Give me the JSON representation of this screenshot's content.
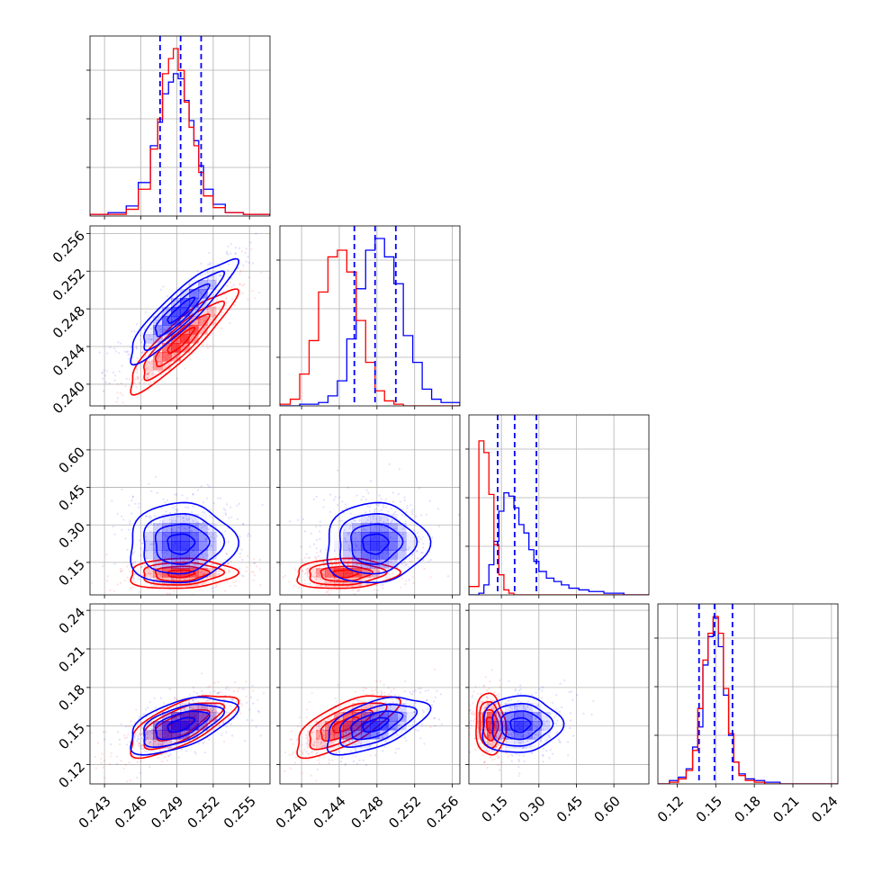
{
  "chart_data": {
    "type": "corner",
    "parameters": [
      {
        "ticks": [
          "0.243",
          "0.246",
          "0.249",
          "0.252",
          "0.255"
        ],
        "tick_values": [
          0.243,
          0.246,
          0.249,
          0.252,
          0.255
        ],
        "range": [
          0.2418,
          0.2567
        ]
      },
      {
        "ticks": [
          "0.240",
          "0.244",
          "0.248",
          "0.252",
          "0.256"
        ],
        "tick_values": [
          0.24,
          0.244,
          0.248,
          0.252,
          0.256
        ],
        "range": [
          0.2377,
          0.2568
        ]
      },
      {
        "ticks": [
          "0.15",
          "0.30",
          "0.45",
          "0.60"
        ],
        "tick_values": [
          0.15,
          0.3,
          0.45,
          0.6
        ],
        "range": [
          0.02,
          0.74
        ]
      },
      {
        "ticks": [
          "0.12",
          "0.15",
          "0.18",
          "0.21",
          "0.24"
        ],
        "tick_values": [
          0.12,
          0.15,
          0.18,
          0.21,
          0.24
        ],
        "range": [
          0.105,
          0.245
        ]
      }
    ],
    "series": [
      {
        "name": "",
        "color": "#0000ff"
      },
      {
        "name": "",
        "color": "#ff0000"
      }
    ],
    "diagonal": [
      {
        "quantiles": [
          0.2476,
          0.2493,
          0.251
        ],
        "bin_edges": [
          0.2418,
          0.2433,
          0.2448,
          0.2458,
          0.2468,
          0.2474,
          0.2478,
          0.2483,
          0.2487,
          0.2491,
          0.2496,
          0.25,
          0.2504,
          0.2508,
          0.2512,
          0.252,
          0.253,
          0.2545,
          0.2567
        ],
        "blue": [
          0.01,
          0.02,
          0.06,
          0.2,
          0.42,
          0.56,
          0.73,
          0.8,
          0.85,
          0.82,
          0.69,
          0.57,
          0.45,
          0.3,
          0.16,
          0.07,
          0.02,
          0.01
        ],
        "red": [
          0.01,
          0.01,
          0.04,
          0.16,
          0.4,
          0.58,
          0.85,
          0.94,
          1.0,
          0.87,
          0.68,
          0.53,
          0.42,
          0.26,
          0.12,
          0.05,
          0.02,
          0.01
        ]
      },
      {
        "quantiles": [
          0.2456,
          0.2478,
          0.25
        ],
        "bin_edges": [
          0.2377,
          0.2388,
          0.2398,
          0.2408,
          0.2418,
          0.2428,
          0.2438,
          0.2448,
          0.2458,
          0.2468,
          0.2478,
          0.2488,
          0.2498,
          0.2508,
          0.2518,
          0.2528,
          0.2538,
          0.2548,
          0.2568
        ],
        "blue": [
          0.0,
          0.0,
          0.01,
          0.01,
          0.02,
          0.06,
          0.15,
          0.4,
          0.7,
          0.93,
          1.0,
          0.89,
          0.73,
          0.42,
          0.26,
          0.1,
          0.04,
          0.02
        ],
        "red": [
          0.01,
          0.04,
          0.19,
          0.39,
          0.68,
          0.89,
          0.93,
          0.8,
          0.51,
          0.26,
          0.09,
          0.03,
          0.01,
          0.0,
          0.0,
          0.0,
          0.0,
          0.0
        ]
      },
      {
        "quantiles": [
          0.135,
          0.203,
          0.29
        ],
        "bin_edges": [
          0.02,
          0.06,
          0.08,
          0.1,
          0.12,
          0.14,
          0.16,
          0.18,
          0.2,
          0.22,
          0.24,
          0.26,
          0.28,
          0.3,
          0.33,
          0.36,
          0.39,
          0.42,
          0.46,
          0.5,
          0.56,
          0.64,
          0.74
        ],
        "blue": [
          0.0,
          0.01,
          0.06,
          0.18,
          0.32,
          0.5,
          0.61,
          0.59,
          0.52,
          0.42,
          0.37,
          0.27,
          0.2,
          0.14,
          0.1,
          0.08,
          0.06,
          0.04,
          0.03,
          0.02,
          0.01,
          0.0
        ],
        "red": [
          0.05,
          0.92,
          0.85,
          0.6,
          0.3,
          0.12,
          0.03,
          0.01,
          0.0,
          0.0,
          0.0,
          0.0,
          0.0,
          0.0,
          0.0,
          0.0,
          0.0,
          0.0,
          0.0,
          0.0,
          0.0,
          0.0
        ]
      },
      {
        "quantiles": [
          0.137,
          0.149,
          0.163
        ],
        "bin_edges": [
          0.105,
          0.114,
          0.121,
          0.127,
          0.132,
          0.136,
          0.14,
          0.144,
          0.148,
          0.152,
          0.156,
          0.16,
          0.164,
          0.168,
          0.173,
          0.18,
          0.188,
          0.2,
          0.215,
          0.245
        ],
        "blue": [
          0.0,
          0.02,
          0.04,
          0.09,
          0.22,
          0.34,
          0.71,
          0.88,
          0.99,
          0.82,
          0.53,
          0.29,
          0.13,
          0.06,
          0.03,
          0.02,
          0.01,
          0.0,
          0.0
        ],
        "red": [
          0.0,
          0.01,
          0.03,
          0.08,
          0.2,
          0.45,
          0.74,
          0.9,
          1.0,
          0.9,
          0.57,
          0.3,
          0.13,
          0.05,
          0.02,
          0.01,
          0.0,
          0.0,
          0.0
        ]
      }
    ],
    "distributions": {
      "blue": {
        "mean": [
          0.2493,
          0.2478,
          0.225,
          0.151
        ],
        "std": [
          0.0022,
          0.0027,
          0.08,
          0.011
        ],
        "corr": [
          [
            1,
            0.9,
            0.05,
            0.55
          ],
          [
            0.9,
            1,
            0.05,
            0.55
          ],
          [
            0.05,
            0.05,
            1,
            0.05
          ],
          [
            0.55,
            0.55,
            0.05,
            1
          ]
        ]
      },
      "red": {
        "mean": [
          0.2493,
          0.2446,
          0.105,
          0.151
        ],
        "std": [
          0.0022,
          0.0027,
          0.03,
          0.012
        ],
        "corr": [
          [
            1,
            0.9,
            0.1,
            0.7
          ],
          [
            0.9,
            1,
            0.1,
            0.7
          ],
          [
            0.1,
            0.1,
            1,
            -0.1
          ],
          [
            0.7,
            0.7,
            -0.1,
            1
          ]
        ]
      }
    },
    "grid": true,
    "quantile_line_style": "dashed"
  }
}
